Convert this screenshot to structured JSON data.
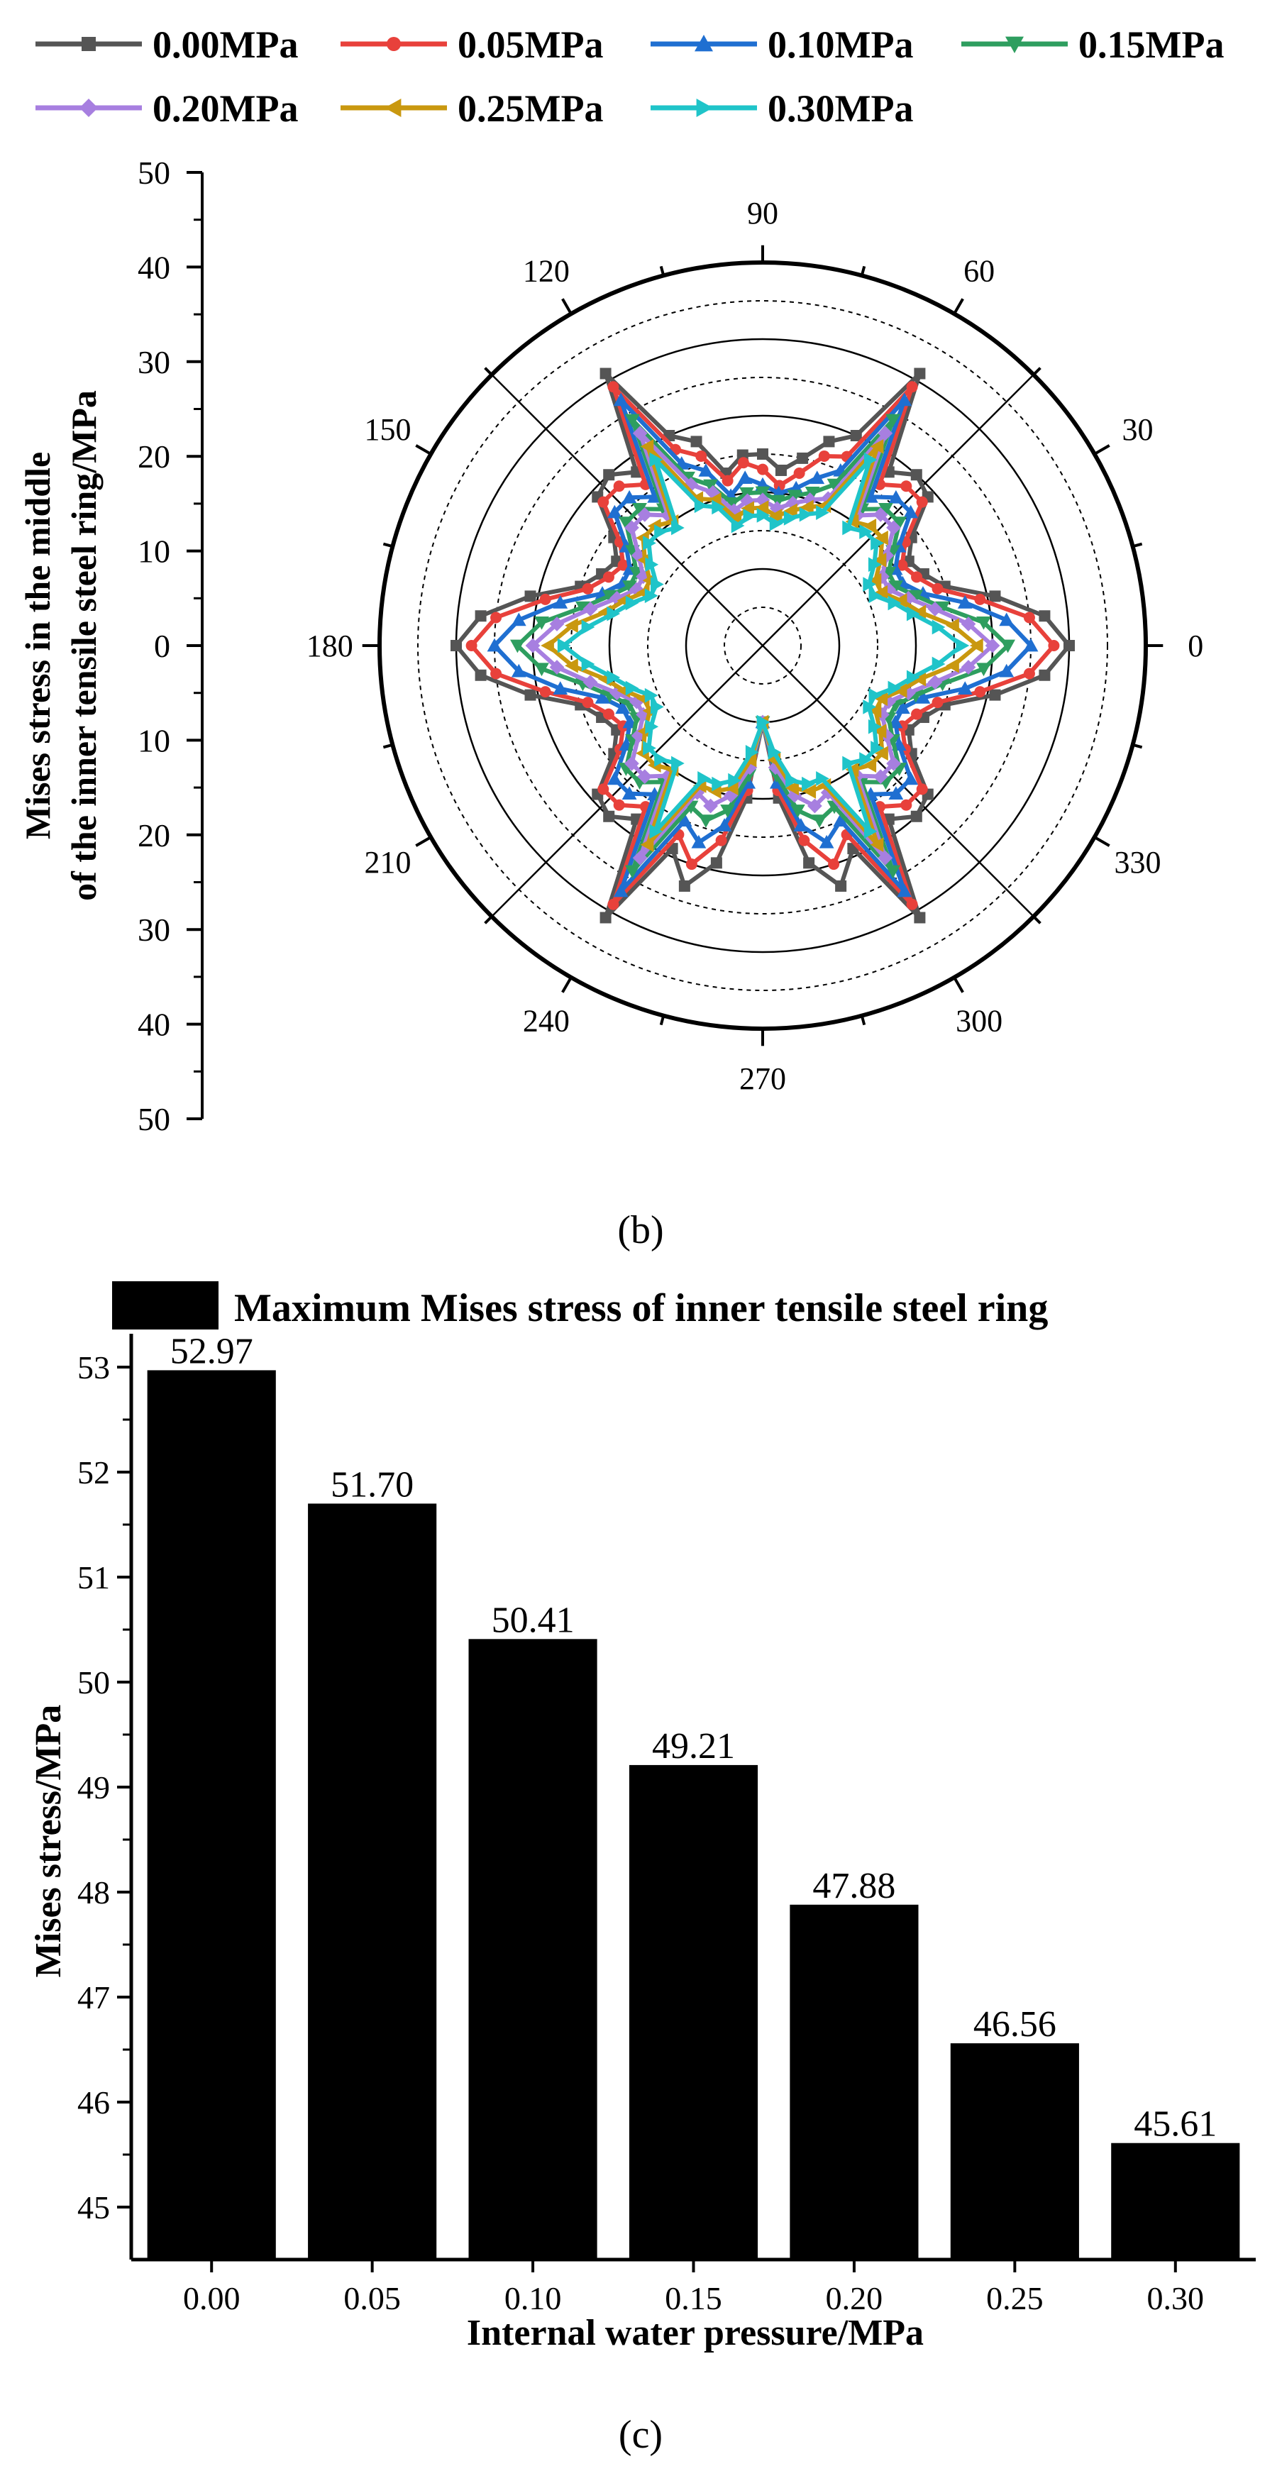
{
  "chart_data": [
    {
      "type": "polar-line",
      "panel_label": "(b)",
      "ylabel": "Mises stress in the middle\nof the inner tensile steel ring/MPa",
      "r_ticks": [
        "50",
        "40",
        "30",
        "20",
        "10",
        "0",
        "10",
        "20",
        "30",
        "40",
        "50"
      ],
      "rlim": [
        0,
        50
      ],
      "angle_ticks": [
        "0",
        "30",
        "60",
        "90",
        "120",
        "150",
        "180",
        "210",
        "240",
        "270",
        "300",
        "330"
      ],
      "grid": true,
      "legend_position": "top",
      "angles_deg": [
        0,
        6,
        12,
        18,
        24,
        30,
        36,
        42,
        48,
        54,
        60,
        66,
        72,
        78,
        84,
        90,
        96,
        102,
        108,
        114,
        120,
        126,
        132,
        138,
        144,
        150,
        156,
        162,
        168,
        174,
        180,
        186,
        192,
        198,
        204,
        210,
        216,
        222,
        228,
        234,
        240,
        246,
        252,
        258,
        264,
        270,
        276,
        282,
        288,
        294,
        300,
        306,
        312,
        318,
        324,
        330,
        336,
        342,
        348,
        354
      ],
      "series": [
        {
          "name": "0.00MPa",
          "color": "#555555",
          "marker": "square",
          "values": [
            40,
            37,
            31,
            25,
            23,
            22,
            24,
            29,
            30,
            28,
            41,
            30,
            28,
            25,
            23,
            25,
            25,
            23,
            28,
            30,
            41,
            28,
            30,
            29,
            24,
            22,
            23,
            25,
            31,
            37,
            40,
            37,
            31,
            25,
            23,
            22,
            24,
            29,
            30,
            28,
            41,
            29,
            33,
            29,
            20,
            10,
            20,
            29,
            33,
            29,
            41,
            28,
            30,
            29,
            24,
            22,
            23,
            25,
            31,
            37
          ]
        },
        {
          "name": "0.05MPa",
          "color": "#e8413b",
          "marker": "circle",
          "values": [
            38,
            35,
            29,
            24,
            22,
            21,
            23,
            28,
            28,
            26,
            39,
            27,
            26,
            23,
            21,
            23,
            24,
            22,
            26,
            28,
            39,
            26,
            28,
            28,
            23,
            21,
            22,
            24,
            29,
            35,
            38,
            35,
            29,
            24,
            22,
            21,
            23,
            28,
            28,
            26,
            39,
            27,
            30,
            26,
            19,
            10,
            19,
            26,
            30,
            27,
            39,
            26,
            28,
            28,
            23,
            21,
            22,
            24,
            29,
            35
          ]
        },
        {
          "name": "0.10MPa",
          "color": "#1f6fd1",
          "marker": "triangle-up",
          "values": [
            35,
            32,
            27,
            22,
            20,
            20,
            22,
            26,
            26,
            24,
            37,
            25,
            23,
            21,
            20,
            21,
            22,
            20,
            24,
            26,
            37,
            24,
            26,
            26,
            22,
            20,
            20,
            22,
            27,
            32,
            35,
            32,
            27,
            22,
            20,
            20,
            22,
            26,
            26,
            24,
            37,
            25,
            27,
            24,
            18,
            10,
            18,
            24,
            27,
            25,
            37,
            24,
            26,
            26,
            22,
            20,
            20,
            22,
            27,
            32
          ]
        },
        {
          "name": "0.15MPa",
          "color": "#2e9e5f",
          "marker": "triangle-down",
          "values": [
            32,
            29,
            24,
            21,
            19,
            19,
            21,
            24,
            24,
            22,
            34,
            23,
            21,
            20,
            19,
            20,
            20,
            19,
            22,
            24,
            34,
            22,
            24,
            24,
            21,
            19,
            19,
            21,
            24,
            29,
            32,
            29,
            24,
            21,
            19,
            19,
            21,
            24,
            24,
            22,
            34,
            23,
            24,
            22,
            17,
            10,
            17,
            22,
            24,
            23,
            34,
            22,
            24,
            24,
            21,
            19,
            19,
            21,
            24,
            29
          ]
        },
        {
          "name": "0.20MPa",
          "color": "#a77fe0",
          "marker": "diamond",
          "values": [
            30,
            27,
            23,
            20,
            18,
            18,
            20,
            23,
            23,
            21,
            32,
            21,
            20,
            19,
            18,
            19,
            19,
            18,
            21,
            23,
            32,
            21,
            23,
            23,
            20,
            18,
            18,
            20,
            23,
            27,
            30,
            27,
            23,
            20,
            18,
            18,
            20,
            23,
            23,
            21,
            32,
            21,
            22,
            20,
            16,
            10,
            16,
            20,
            22,
            21,
            32,
            21,
            23,
            23,
            20,
            18,
            18,
            20,
            23,
            27
          ]
        },
        {
          "name": "0.25MPa",
          "color": "#c9980f",
          "marker": "triangle-left",
          "values": [
            28,
            25,
            21,
            19,
            17,
            17,
            19,
            21,
            21,
            20,
            30,
            20,
            19,
            18,
            17,
            18,
            18,
            17,
            20,
            21,
            30,
            20,
            21,
            21,
            19,
            17,
            17,
            19,
            21,
            25,
            28,
            25,
            21,
            19,
            17,
            17,
            19,
            21,
            21,
            20,
            30,
            20,
            20,
            19,
            15,
            10,
            15,
            19,
            20,
            20,
            30,
            20,
            21,
            21,
            19,
            17,
            17,
            19,
            21,
            25
          ]
        },
        {
          "name": "0.30MPa",
          "color": "#1fc4c9",
          "marker": "triangle-right",
          "values": [
            26,
            23,
            20,
            18,
            16,
            16,
            18,
            20,
            20,
            19,
            28,
            19,
            18,
            17,
            16,
            17,
            17,
            16,
            19,
            20,
            28,
            19,
            20,
            20,
            18,
            16,
            16,
            18,
            20,
            23,
            26,
            23,
            20,
            18,
            16,
            16,
            18,
            20,
            20,
            19,
            28,
            19,
            19,
            18,
            14,
            10,
            14,
            18,
            19,
            19,
            28,
            19,
            20,
            20,
            18,
            16,
            16,
            18,
            20,
            23
          ]
        }
      ]
    },
    {
      "type": "bar",
      "panel_label": "(c)",
      "legend": "Maximum Mises stress of inner tensile steel ring",
      "xlabel": "Internal water pressure/MPa",
      "ylabel": "Mises stress/MPa",
      "categories": [
        "0.00",
        "0.05",
        "0.10",
        "0.15",
        "0.20",
        "0.25",
        "0.30"
      ],
      "values": [
        52.97,
        51.7,
        50.41,
        49.21,
        47.88,
        46.56,
        45.61
      ],
      "value_labels": [
        "52.97",
        "51.70",
        "50.41",
        "49.21",
        "47.88",
        "46.56",
        "45.61"
      ],
      "ylim": [
        44.5,
        53.25
      ],
      "yticks": [
        "45",
        "46",
        "47",
        "48",
        "49",
        "50",
        "51",
        "52",
        "53"
      ],
      "bar_color": "#000000"
    }
  ]
}
